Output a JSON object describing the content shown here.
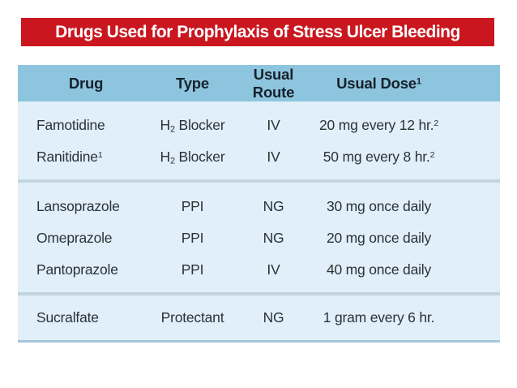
{
  "title": "Drugs Used for Prophylaxis of Stress Ulcer Bleeding",
  "colors": {
    "banner_red": "#c9161f",
    "header_blue": "#8ec5de",
    "body_blue": "#e0eff9",
    "divider_gray_blue": "#c3d5dd",
    "bottom_line_blue": "#a5c8d8",
    "header_text": "#16222c",
    "body_text": "#2b3238",
    "title_text": "#ffffff"
  },
  "table": {
    "columns": [
      "Drug",
      "Type",
      "Usual Route",
      "Usual Dose"
    ],
    "dose_header_sup": "1",
    "rows": [
      {
        "drug": "Famotidine",
        "drug_sup": "",
        "type_pre": "H",
        "type_sub": "2",
        "type_post": " Blocker",
        "route": "IV",
        "dose": "20 mg every 12 hr.",
        "dose_sup": "2"
      },
      {
        "drug": "Ranitidine",
        "drug_sup": "1",
        "type_pre": "H",
        "type_sub": "2",
        "type_post": " Blocker",
        "route": "IV",
        "dose": "50 mg every 8 hr.",
        "dose_sup": "2"
      },
      {
        "drug": "Lansoprazole",
        "drug_sup": "",
        "type_pre": "PPI",
        "type_sub": "",
        "type_post": "",
        "route": "NG",
        "dose": "30 mg once daily",
        "dose_sup": ""
      },
      {
        "drug": "Omeprazole",
        "drug_sup": "",
        "type_pre": "PPI",
        "type_sub": "",
        "type_post": "",
        "route": "NG",
        "dose": "20 mg once daily",
        "dose_sup": ""
      },
      {
        "drug": "Pantoprazole",
        "drug_sup": "",
        "type_pre": "PPI",
        "type_sub": "",
        "type_post": "",
        "route": "IV",
        "dose": "40 mg once daily",
        "dose_sup": ""
      },
      {
        "drug": "Sucralfate",
        "drug_sup": "",
        "type_pre": "Protectant",
        "type_sub": "",
        "type_post": "",
        "route": "NG",
        "dose": "1 gram every 6 hr.",
        "dose_sup": ""
      }
    ]
  }
}
